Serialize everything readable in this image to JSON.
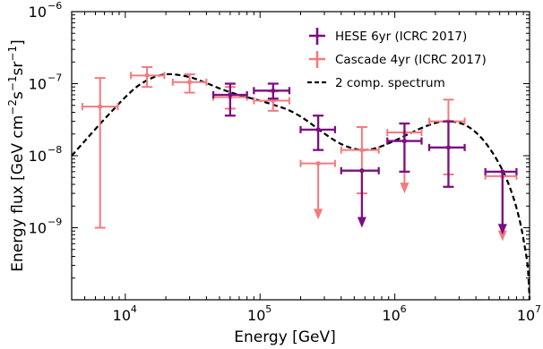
{
  "chart_data": {
    "type": "scatter",
    "xlabel": "Energy [GeV]",
    "ylabel_parts": [
      "Energy flux [GeV cm",
      "−2",
      "s",
      "−1",
      "sr",
      "−1",
      "]"
    ],
    "x_scale": "log",
    "y_scale": "log",
    "xlim": [
      4000,
      10000000
    ],
    "ylim": [
      1e-10,
      1e-06
    ],
    "x_ticks": [
      {
        "base": "10",
        "exp": "4",
        "value": 10000
      },
      {
        "base": "10",
        "exp": "5",
        "value": 100000
      },
      {
        "base": "10",
        "exp": "6",
        "value": 1000000
      },
      {
        "base": "10",
        "exp": "7",
        "value": 10000000
      }
    ],
    "y_ticks": [
      {
        "base": "10",
        "exp": "−9",
        "value": 1e-09
      },
      {
        "base": "10",
        "exp": "−8",
        "value": 1e-08
      },
      {
        "base": "10",
        "exp": "−7",
        "value": 1e-07
      },
      {
        "base": "10",
        "exp": "−6",
        "value": 1e-06
      }
    ],
    "legend_position": "top-right",
    "grid": false,
    "series": [
      {
        "name": "HESE 6yr (ICRC 2017)",
        "color": "#7b0f80",
        "marker": "plus-errorbar",
        "points": [
          {
            "x": 60000,
            "xlo": 45000,
            "xhi": 80000,
            "y": 7e-08,
            "ylo": 3.6e-08,
            "yhi": 1e-07
          },
          {
            "x": 125000,
            "xlo": 90000,
            "xhi": 165000,
            "y": 8e-08,
            "ylo": 6.2e-08,
            "yhi": 1e-07
          },
          {
            "x": 270000,
            "xlo": 200000,
            "xhi": 360000,
            "y": 2.3e-08,
            "ylo": 1.2e-08,
            "yhi": 3.6e-08
          },
          {
            "x": 570000,
            "xlo": 400000,
            "xhi": 760000,
            "y": 6.2e-09,
            "upper_limit": true,
            "arrow_to": 1e-09
          },
          {
            "x": 1180000,
            "xlo": 880000,
            "xhi": 1580000,
            "y": 1.6e-08,
            "ylo": 6e-09,
            "yhi": 2.8e-08
          },
          {
            "x": 2500000,
            "xlo": 1800000,
            "xhi": 3300000,
            "y": 1.3e-08,
            "ylo": 3.7e-09,
            "yhi": 3e-08
          },
          {
            "x": 6300000,
            "xlo": 4700000,
            "xhi": 8000000,
            "y": 6e-09,
            "upper_limit": true,
            "arrow_to": 8e-10
          }
        ]
      },
      {
        "name": "Cascade 4yr (ICRC 2017)",
        "color": "#f47a7d",
        "marker": "plus-errorbar",
        "points": [
          {
            "x": 6500,
            "xlo": 4800,
            "xhi": 8800,
            "y": 4.8e-08,
            "ylo": 1e-09,
            "yhi": 1.2e-07
          },
          {
            "x": 14500,
            "xlo": 11000,
            "xhi": 19500,
            "y": 1.3e-07,
            "ylo": 9e-08,
            "yhi": 1.7e-07
          },
          {
            "x": 30000,
            "xlo": 22500,
            "xhi": 40000,
            "y": 1.05e-07,
            "ylo": 7.5e-08,
            "yhi": 1.35e-07
          },
          {
            "x": 60000,
            "xlo": 45000,
            "xhi": 80000,
            "y": 6.5e-08,
            "ylo": 4.5e-08,
            "yhi": 9e-08
          },
          {
            "x": 125000,
            "xlo": 90000,
            "xhi": 165000,
            "y": 5.8e-08,
            "ylo": 4.2e-08,
            "yhi": 7.8e-08
          },
          {
            "x": 270000,
            "xlo": 200000,
            "xhi": 360000,
            "y": 7.8e-09,
            "upper_limit": true,
            "arrow_to": 1.3e-09
          },
          {
            "x": 570000,
            "xlo": 400000,
            "xhi": 760000,
            "y": 1.2e-08,
            "ylo": 3e-09,
            "yhi": 2.5e-08
          },
          {
            "x": 1180000,
            "xlo": 880000,
            "xhi": 1580000,
            "y": 2.1e-08,
            "upper_limit": true,
            "arrow_to": 3e-09
          },
          {
            "x": 2500000,
            "xlo": 1800000,
            "xhi": 3300000,
            "y": 3e-08,
            "ylo": 5.5e-09,
            "yhi": 6e-08
          },
          {
            "x": 6300000,
            "xlo": 4700000,
            "xhi": 8000000,
            "y": 5.2e-09,
            "upper_limit": true,
            "arrow_to": 6.5e-10
          }
        ]
      },
      {
        "name": "2 comp. spectrum",
        "color": "#000000",
        "style": "dashed-line",
        "points": [
          {
            "x": 4000,
            "y": 1e-08
          },
          {
            "x": 5000,
            "y": 1.6e-08
          },
          {
            "x": 6300,
            "y": 2.6e-08
          },
          {
            "x": 8000,
            "y": 4.2e-08
          },
          {
            "x": 10000,
            "y": 6.5e-08
          },
          {
            "x": 12500,
            "y": 9.4e-08
          },
          {
            "x": 15800,
            "y": 1.2e-07
          },
          {
            "x": 20000,
            "y": 1.35e-07
          },
          {
            "x": 25000,
            "y": 1.32e-07
          },
          {
            "x": 31600,
            "y": 1.2e-07
          },
          {
            "x": 40000,
            "y": 1.02e-07
          },
          {
            "x": 50000,
            "y": 8.6e-08
          },
          {
            "x": 63000,
            "y": 7.4e-08
          },
          {
            "x": 80000,
            "y": 6.5e-08
          },
          {
            "x": 100000,
            "y": 5.8e-08
          },
          {
            "x": 125000,
            "y": 5.1e-08
          },
          {
            "x": 158000,
            "y": 4.4e-08
          },
          {
            "x": 200000,
            "y": 3.5e-08
          },
          {
            "x": 251000,
            "y": 2.6e-08
          },
          {
            "x": 316000,
            "y": 1.9e-08
          },
          {
            "x": 400000,
            "y": 1.45e-08
          },
          {
            "x": 500000,
            "y": 1.25e-08
          },
          {
            "x": 600000,
            "y": 1.2e-08
          },
          {
            "x": 750000,
            "y": 1.3e-08
          },
          {
            "x": 1000000,
            "y": 1.62e-08
          },
          {
            "x": 1300000,
            "y": 2.05e-08
          },
          {
            "x": 1600000,
            "y": 2.45e-08
          },
          {
            "x": 2000000,
            "y": 2.85e-08
          },
          {
            "x": 2500000,
            "y": 3e-08
          },
          {
            "x": 3200000,
            "y": 2.75e-08
          },
          {
            "x": 4000000,
            "y": 2.1e-08
          },
          {
            "x": 5000000,
            "y": 1.3e-08
          },
          {
            "x": 6300000,
            "y": 6.3e-09
          },
          {
            "x": 7500000,
            "y": 2.8e-09
          },
          {
            "x": 8500000,
            "y": 1.2e-09
          },
          {
            "x": 9200000,
            "y": 5.5e-10
          },
          {
            "x": 9700000,
            "y": 2.8e-10
          },
          {
            "x": 10000000,
            "y": 1e-10
          }
        ]
      }
    ]
  }
}
